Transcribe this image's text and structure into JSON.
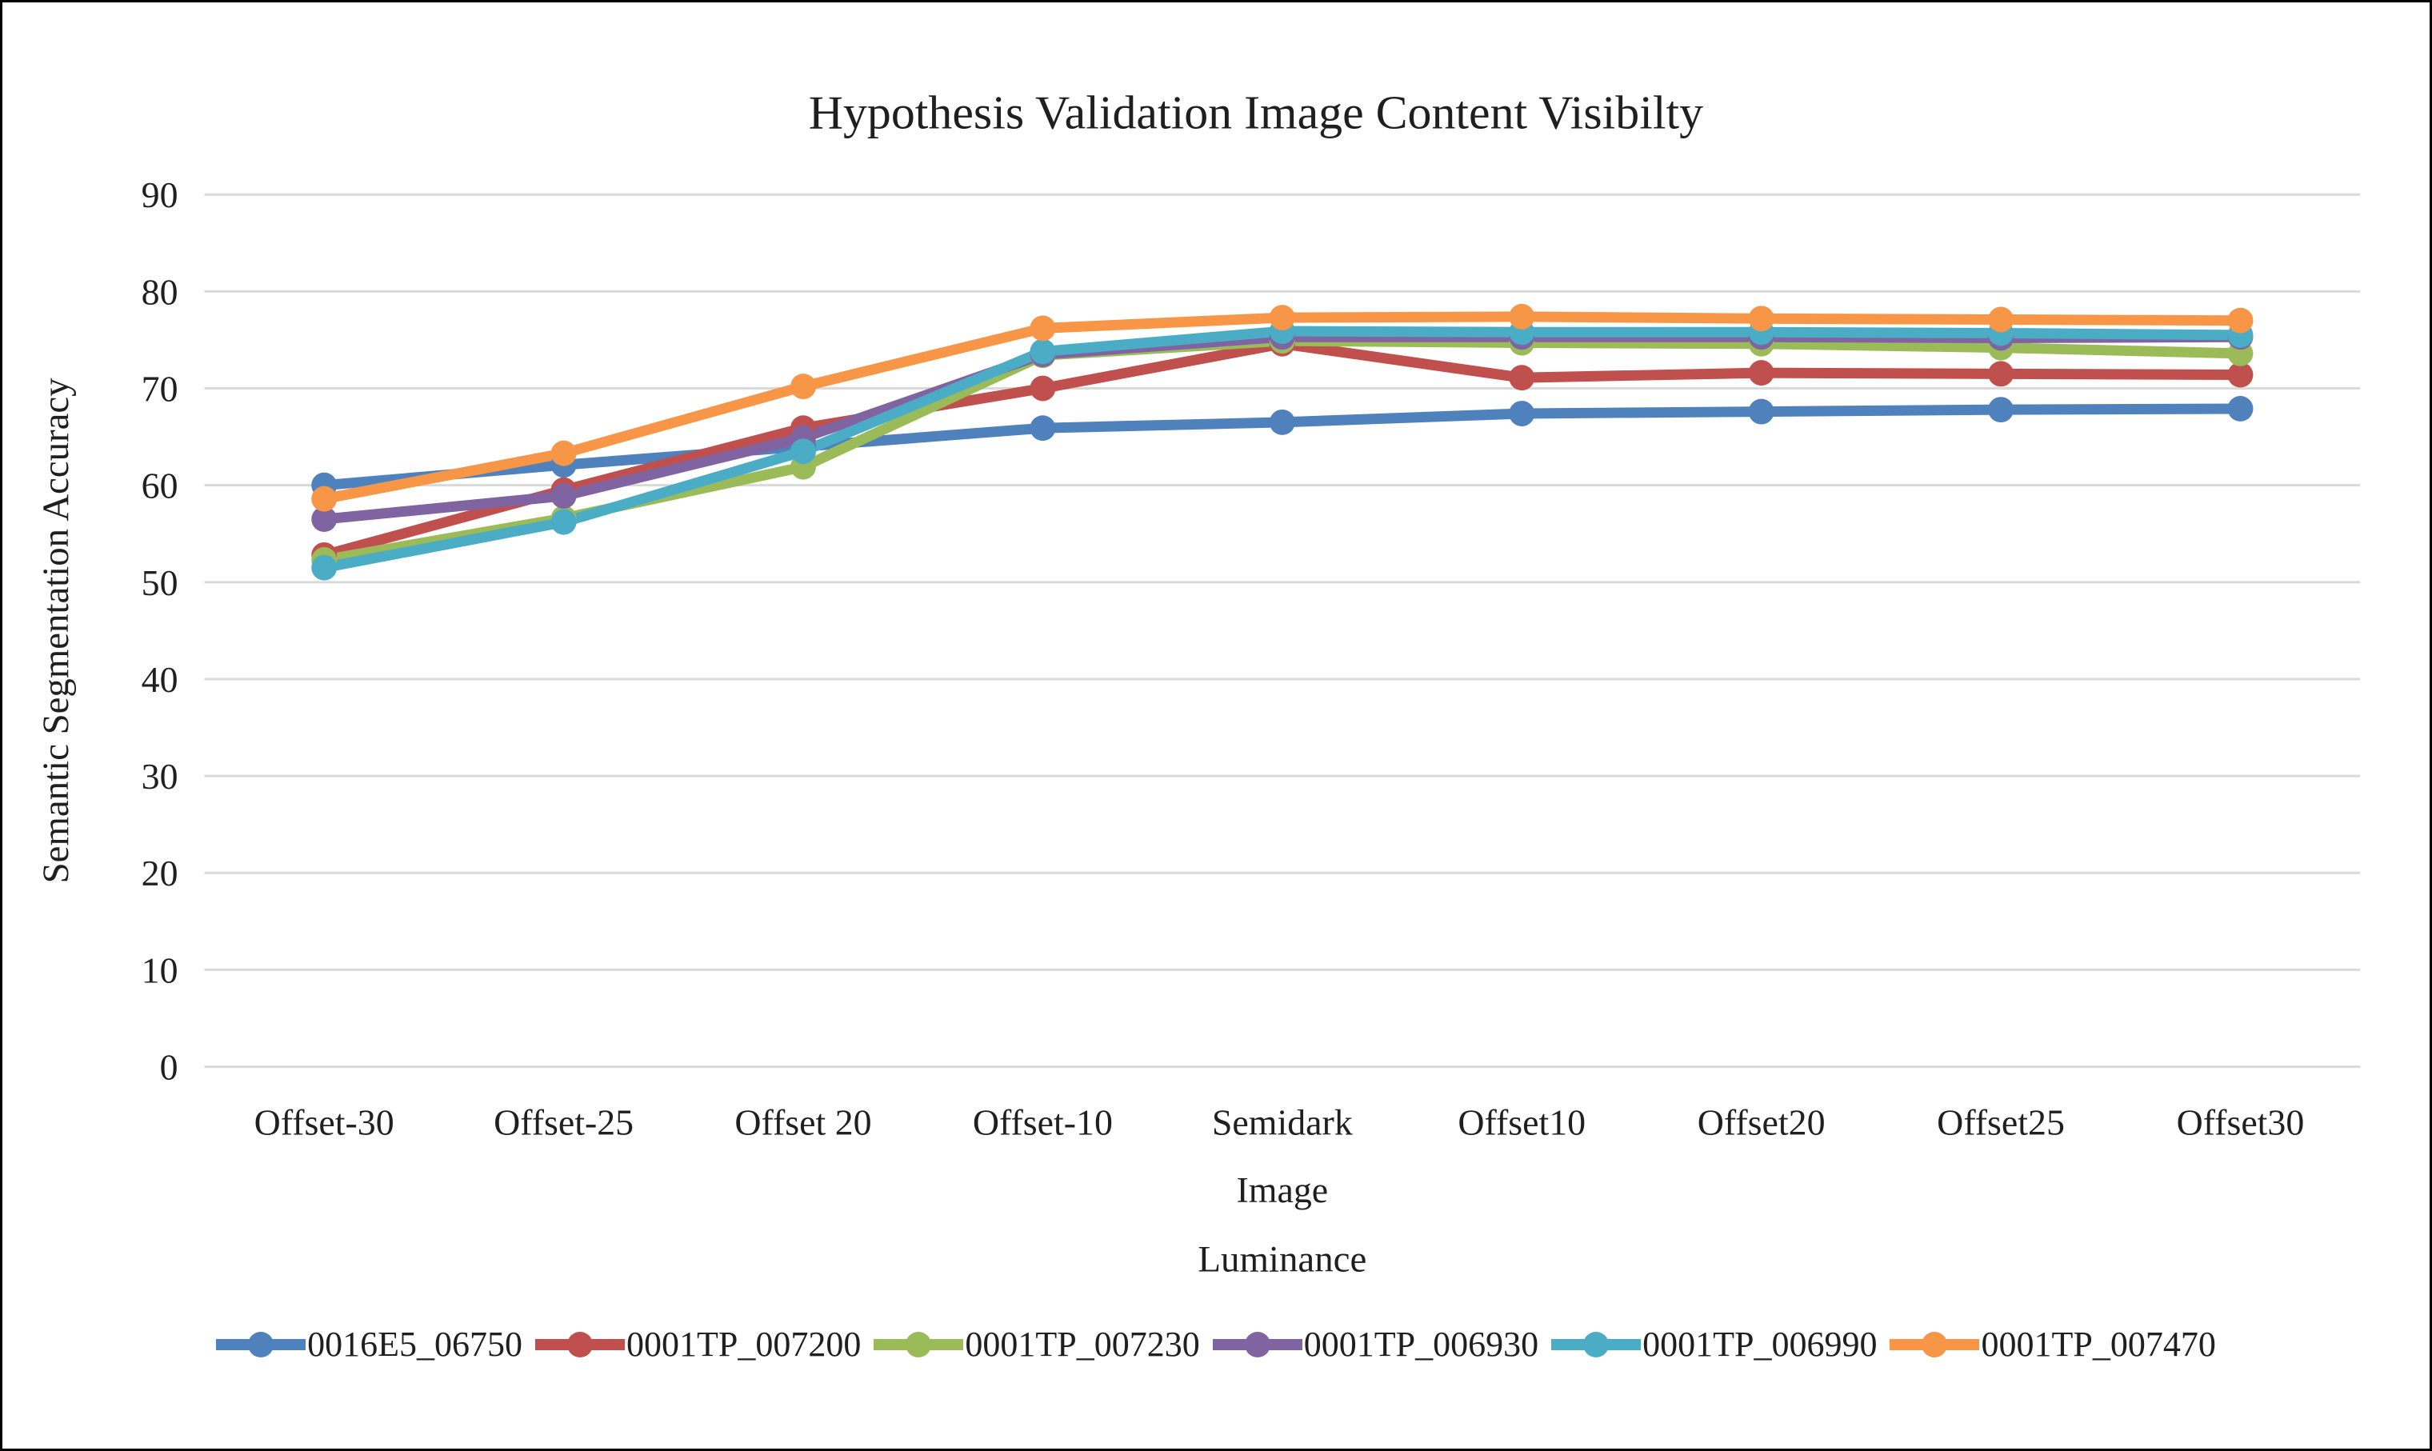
{
  "figure": {
    "background": "#FFFFFF",
    "border_color": "#000000"
  },
  "colors": {
    "gridline": "#D9D9D9",
    "text": "#1F1F1F"
  },
  "chart_data": {
    "type": "line",
    "title": "Hypothesis Validation Image Content Visibilty",
    "xlabel": "Luminance",
    "ylabel": "Semantic Segmentation Accuracy",
    "ylim": [
      0,
      90
    ],
    "yticks": [
      0,
      10,
      20,
      30,
      40,
      50,
      60,
      70,
      80,
      90
    ],
    "grid": "horizontal",
    "legend_position": "bottom",
    "marker": "circle",
    "categories": [
      "Offset-30",
      "Offset-25",
      "Offset 20",
      "Offset-10",
      "Semidark Image",
      "Offset10",
      "Offset20",
      "Offset25",
      "Offset30"
    ],
    "category_label_lines": [
      [
        "Offset-30"
      ],
      [
        "Offset-25"
      ],
      [
        "Offset 20"
      ],
      [
        "Offset-10"
      ],
      [
        "Semidark",
        "Image"
      ],
      [
        "Offset10"
      ],
      [
        "Offset20"
      ],
      [
        "Offset25"
      ],
      [
        "Offset30"
      ]
    ],
    "series": [
      {
        "name": "0016E5_06750",
        "color": "#4F81BD",
        "values": [
          60.0,
          62.1,
          64.0,
          65.9,
          66.5,
          67.4,
          67.6,
          67.8,
          67.9
        ]
      },
      {
        "name": "0001TP_007200",
        "color": "#C0504D",
        "values": [
          52.8,
          59.5,
          65.9,
          70.0,
          74.6,
          71.1,
          71.6,
          71.5,
          71.4
        ]
      },
      {
        "name": "0001TP_007230",
        "color": "#9BBB59",
        "values": [
          52.3,
          56.6,
          61.9,
          73.4,
          74.9,
          74.7,
          74.6,
          74.2,
          73.6
        ]
      },
      {
        "name": "0001TP_006930",
        "color": "#8064A2",
        "values": [
          56.5,
          58.9,
          64.9,
          73.5,
          75.3,
          75.3,
          75.3,
          75.2,
          75.3
        ]
      },
      {
        "name": "0001TP_006990",
        "color": "#4BACC6",
        "values": [
          51.5,
          56.2,
          63.5,
          73.8,
          75.9,
          75.8,
          75.8,
          75.7,
          75.5
        ]
      },
      {
        "name": "0001TP_007470",
        "color": "#F79646",
        "values": [
          58.6,
          63.3,
          70.2,
          76.2,
          77.3,
          77.4,
          77.2,
          77.1,
          77.0
        ]
      }
    ]
  }
}
